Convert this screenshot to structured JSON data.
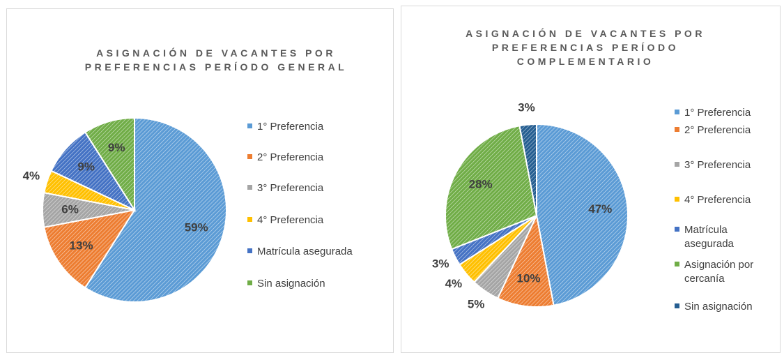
{
  "chart_data": [
    {
      "type": "pie",
      "title": "ASIGNACIÓN DE VACANTES POR PREFERENCIAS PERÍODO GENERAL",
      "categories": [
        "1° Preferencia",
        "2° Preferencia",
        "3° Preferencia",
        "4° Preferencia",
        "Matrícula asegurada",
        "Sin asignación"
      ],
      "values": [
        59,
        13,
        6,
        4,
        9,
        9
      ],
      "value_labels": [
        "59%",
        "13%",
        "6%",
        "4%",
        "9%",
        "9%"
      ],
      "colors": [
        "#5b9bd5",
        "#ed7d31",
        "#a5a5a5",
        "#ffc000",
        "#4472c4",
        "#70ad47"
      ],
      "legend": "right"
    },
    {
      "type": "pie",
      "title": "ASIGNACIÓN DE VACANTES POR PREFERENCIAS PERÍODO COMPLEMENTARIO",
      "categories": [
        "1° Preferencia",
        "2° Preferencia",
        "3° Preferencia",
        "4° Preferencia",
        "Matrícula asegurada",
        "Asignación por cercanía",
        "Sin asignación"
      ],
      "values": [
        47,
        10,
        5,
        4,
        3,
        28,
        3
      ],
      "value_labels": [
        "47%",
        "10%",
        "5%",
        "4%",
        "3%",
        "28%",
        "3%"
      ],
      "colors": [
        "#5b9bd5",
        "#ed7d31",
        "#a5a5a5",
        "#ffc000",
        "#4472c4",
        "#70ad47",
        "#255e91"
      ],
      "legend": "right"
    }
  ]
}
